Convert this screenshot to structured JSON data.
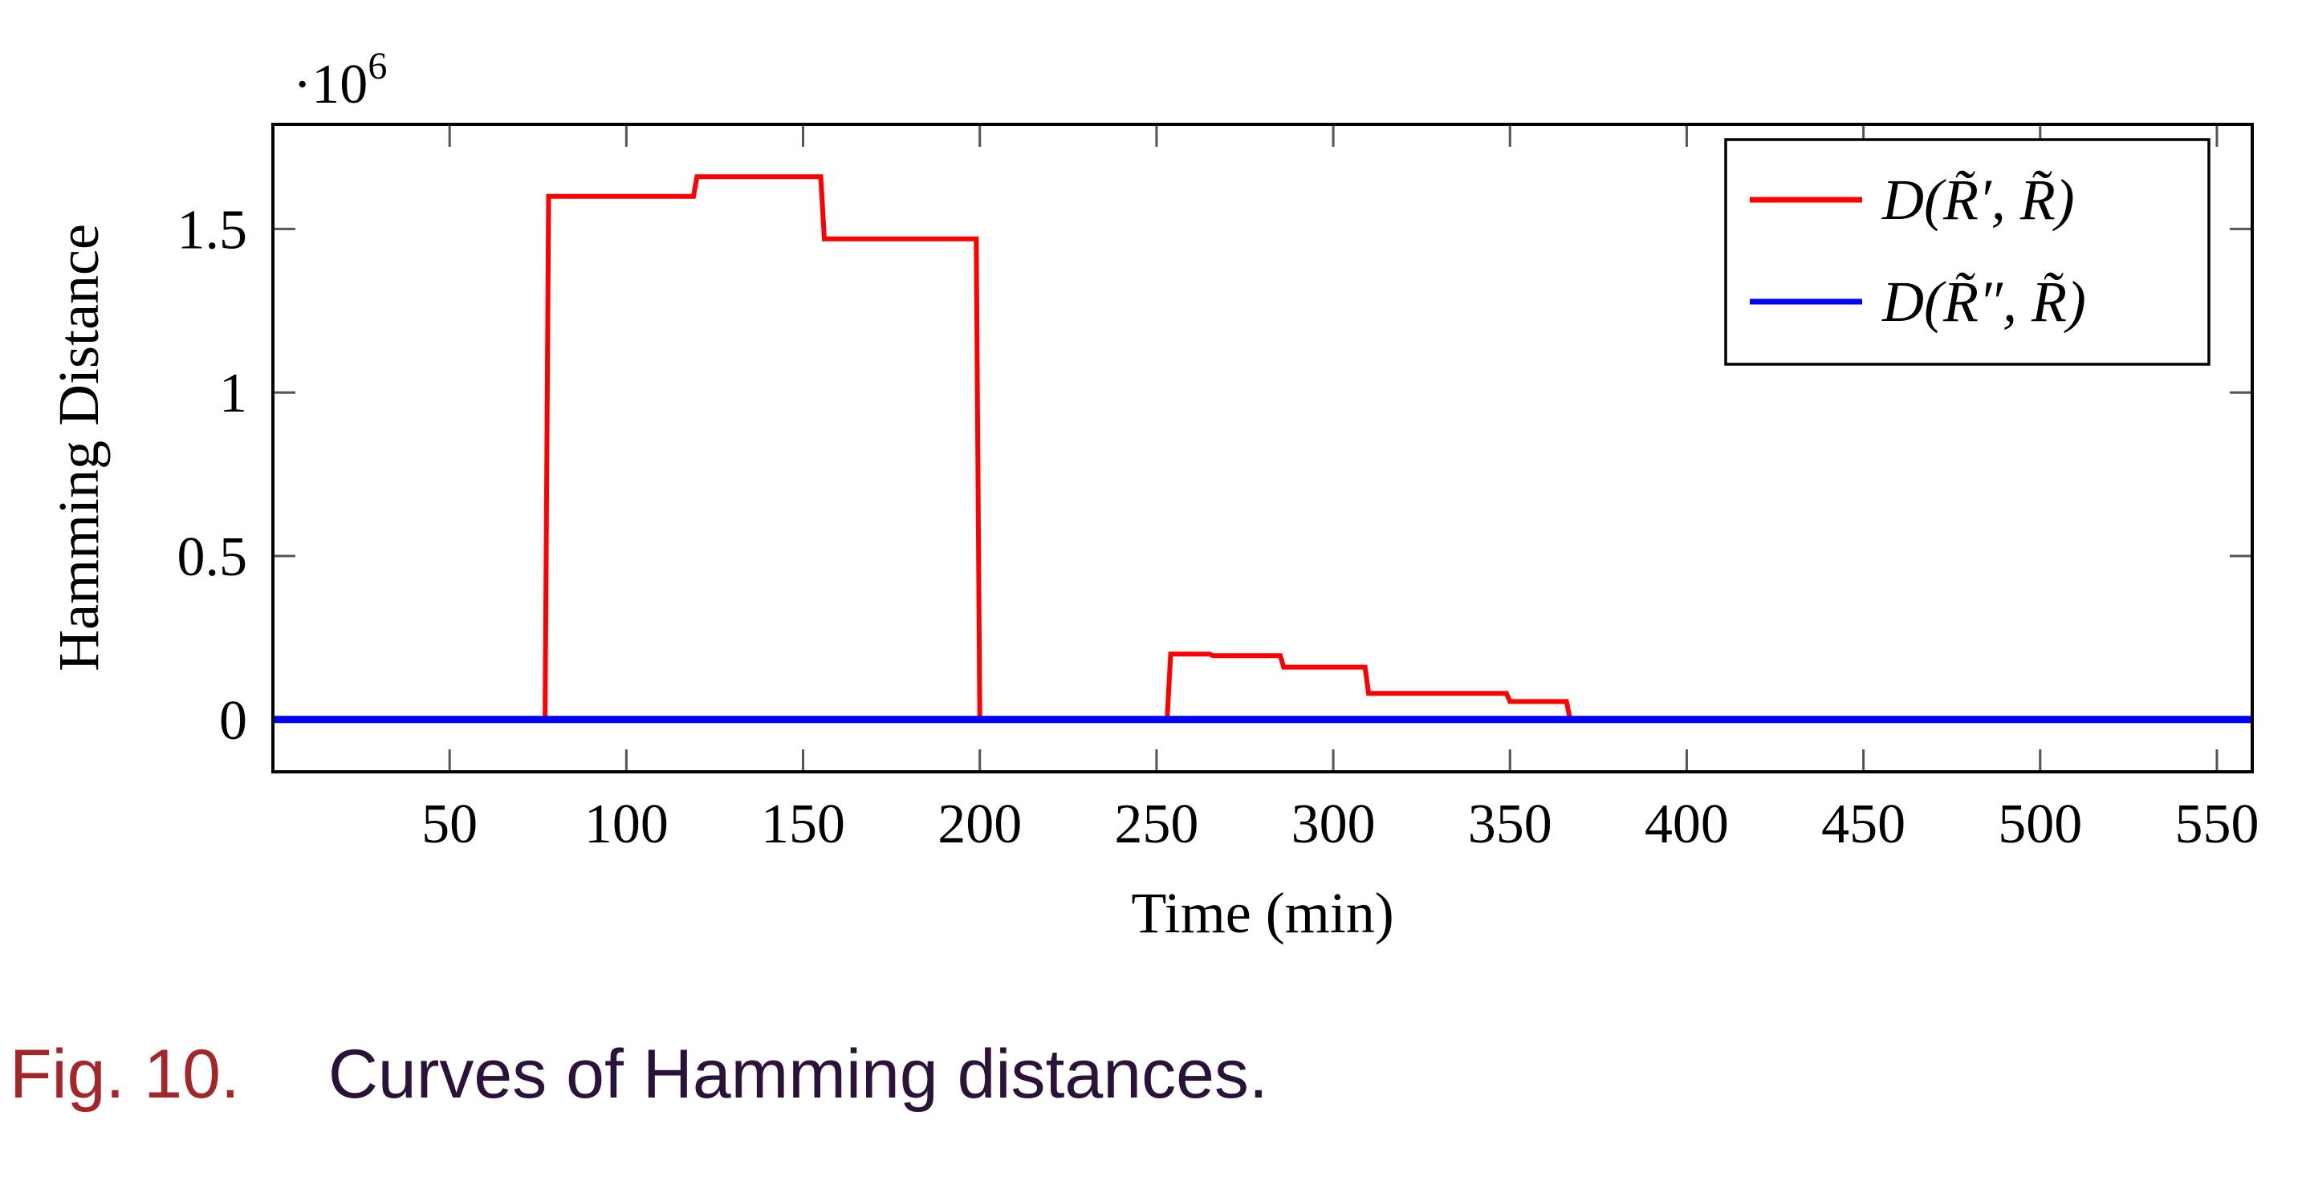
{
  "chart_data": {
    "type": "line",
    "xlabel": "Time (min)",
    "ylabel": "Hamming Distance",
    "y_multiplier": "·10",
    "y_multiplier_exp": "6",
    "xlim": [
      0,
      560
    ],
    "ylim": [
      -0.16,
      1.82
    ],
    "x_ticks": [
      50,
      100,
      150,
      200,
      250,
      300,
      350,
      400,
      450,
      500,
      550
    ],
    "x_tick_labels": [
      "50",
      "100",
      "150",
      "200",
      "250",
      "300",
      "350",
      "400",
      "450",
      "500",
      "550"
    ],
    "y_ticks": [
      0,
      0.5,
      1,
      1.5
    ],
    "y_tick_labels": [
      "0",
      "0.5",
      "1",
      "1.5"
    ],
    "legend_position": "top-right",
    "grid": false,
    "series": [
      {
        "name": "D(R̃′, R̃)",
        "color": "#ff0000",
        "points": [
          [
            0,
            0
          ],
          [
            77,
            0
          ],
          [
            78,
            1.6
          ],
          [
            119,
            1.6
          ],
          [
            120,
            1.66
          ],
          [
            155,
            1.66
          ],
          [
            156,
            1.47
          ],
          [
            199,
            1.47
          ],
          [
            200,
            0
          ],
          [
            253,
            0
          ],
          [
            254,
            0.2
          ],
          [
            265,
            0.2
          ],
          [
            266,
            0.195
          ],
          [
            285,
            0.195
          ],
          [
            286,
            0.16
          ],
          [
            309,
            0.16
          ],
          [
            310,
            0.08
          ],
          [
            349,
            0.08
          ],
          [
            350,
            0.055
          ],
          [
            366,
            0.055
          ],
          [
            367,
            0
          ],
          [
            560,
            0
          ]
        ]
      },
      {
        "name": "D(R̃″, R̃)",
        "color": "#0000ff",
        "points": [
          [
            0,
            0
          ],
          [
            560,
            0
          ]
        ]
      }
    ]
  },
  "caption": {
    "figure_number": "Fig. 10.",
    "text": "Curves of Hamming distances."
  }
}
